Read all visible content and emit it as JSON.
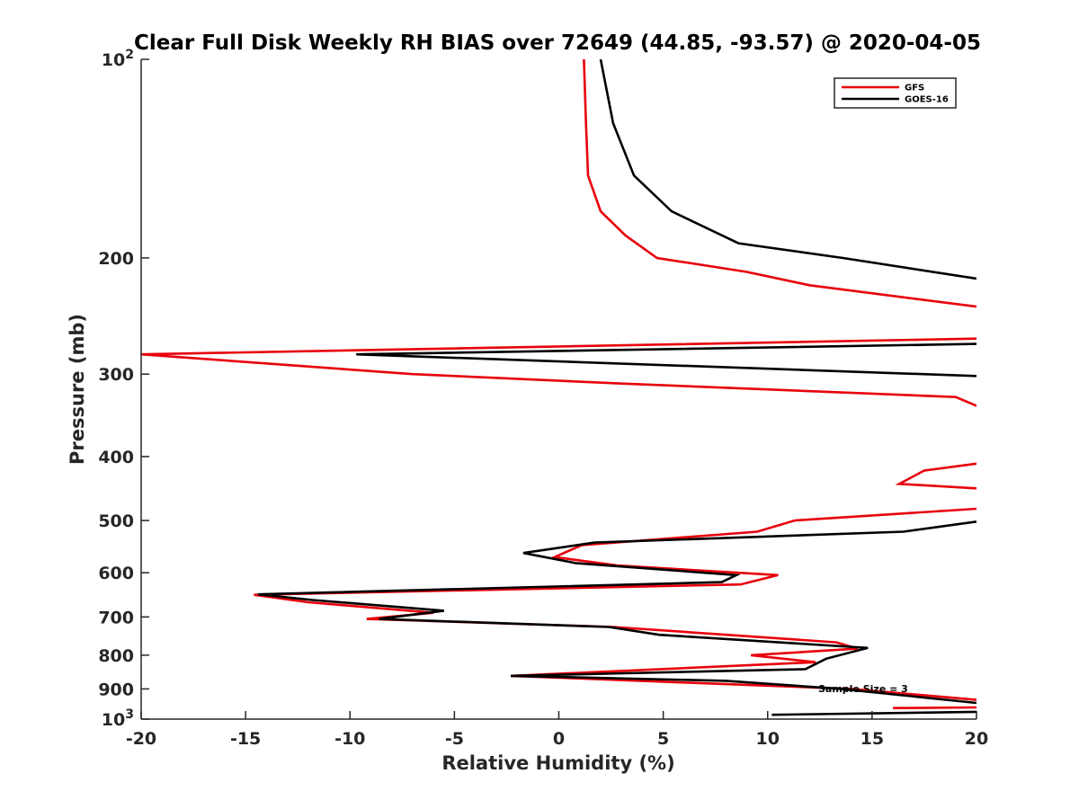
{
  "chart_data": {
    "type": "line",
    "title": "Clear Full Disk Weekly RH BIAS over 72649 (44.85, -93.57) @ 2020-04-05",
    "xlabel": "Relative Humidity (%)",
    "ylabel": "Pressure (mb)",
    "xlim": [
      -20,
      20
    ],
    "ylim": [
      100,
      1000
    ],
    "y_scale": "log",
    "y_reversed": true,
    "grid": false,
    "legend_position": "top-right",
    "x_ticks": [
      "-20",
      "-15",
      "-10",
      "-5",
      "0",
      "5",
      "10",
      "15",
      "20"
    ],
    "y_ticks": [
      {
        "value": 100,
        "base": "10",
        "exp": "2"
      },
      {
        "value": 200,
        "label": "200"
      },
      {
        "value": 300,
        "label": "300"
      },
      {
        "value": 400,
        "label": "400"
      },
      {
        "value": 500,
        "label": "500"
      },
      {
        "value": 600,
        "label": "600"
      },
      {
        "value": 700,
        "label": "700"
      },
      {
        "value": 800,
        "label": "800"
      },
      {
        "value": 900,
        "label": "900"
      },
      {
        "value": 1000,
        "base": "10",
        "exp": "3"
      }
    ],
    "annotation": "Sample Size = 3",
    "series": [
      {
        "name": "GFS",
        "color": "#e8000b",
        "segments": [
          [
            [
              1.2,
              100
            ],
            [
              1.3,
              125
            ],
            [
              1.4,
              150
            ],
            [
              2,
              170
            ],
            [
              3.2,
              185
            ],
            [
              4.7,
              200
            ],
            [
              9,
              210
            ],
            [
              12,
              220
            ],
            [
              20,
              237
            ]
          ],
          [
            [
              20,
              265
            ],
            [
              -20,
              280
            ],
            [
              -7,
              300
            ],
            [
              3,
              310
            ],
            [
              19,
              325
            ],
            [
              20,
              335
            ]
          ],
          [
            [
              20,
              410
            ],
            [
              17.5,
              420
            ],
            [
              16.3,
              440
            ],
            [
              20,
              447
            ]
          ],
          [
            [
              20,
              480
            ],
            [
              11.3,
              500
            ],
            [
              9.5,
              520
            ],
            [
              1.1,
              545
            ],
            [
              -0.2,
              568
            ],
            [
              2.8,
              585
            ],
            [
              10.5,
              605
            ],
            [
              8.7,
              625
            ],
            [
              -14.6,
              648
            ],
            [
              -12,
              665
            ],
            [
              -6,
              690
            ],
            [
              -9.2,
              705
            ],
            [
              2.6,
              725
            ],
            [
              13.3,
              765
            ],
            [
              14.3,
              782
            ],
            [
              9.2,
              800
            ],
            [
              12.3,
              820
            ],
            [
              -2.3,
              860
            ],
            [
              6,
              880
            ],
            [
              14,
              900
            ],
            [
              20,
              935
            ]
          ],
          [
            [
              16,
              962
            ],
            [
              20,
              960
            ]
          ]
        ]
      },
      {
        "name": "GOES-16",
        "color": "#000000",
        "segments": [
          [
            [
              2.0,
              100
            ],
            [
              2.6,
              125
            ],
            [
              3.6,
              150
            ],
            [
              5.4,
              170
            ],
            [
              8.6,
              190
            ],
            [
              13.6,
              200
            ],
            [
              20,
              215
            ]
          ],
          [
            [
              20,
              270
            ],
            [
              -9.7,
              280
            ],
            [
              20,
              302
            ]
          ],
          [
            [
              20,
              502
            ],
            [
              16.5,
              520
            ],
            [
              1.7,
              540
            ],
            [
              -1.7,
              560
            ],
            [
              0.8,
              580
            ],
            [
              8.5,
              605
            ],
            [
              7.8,
              620
            ],
            [
              -14.4,
              647
            ],
            [
              -11.8,
              660
            ],
            [
              -5.5,
              685
            ],
            [
              -8.6,
              705
            ],
            [
              2.4,
              725
            ],
            [
              4.8,
              745
            ],
            [
              14.8,
              780
            ],
            [
              12.8,
              810
            ],
            [
              11.8,
              840
            ],
            [
              -2.3,
              860
            ],
            [
              8,
              875
            ],
            [
              13.5,
              900
            ],
            [
              20,
              945
            ]
          ],
          [
            [
              10.2,
              985
            ],
            [
              20,
              975
            ]
          ]
        ]
      }
    ]
  }
}
